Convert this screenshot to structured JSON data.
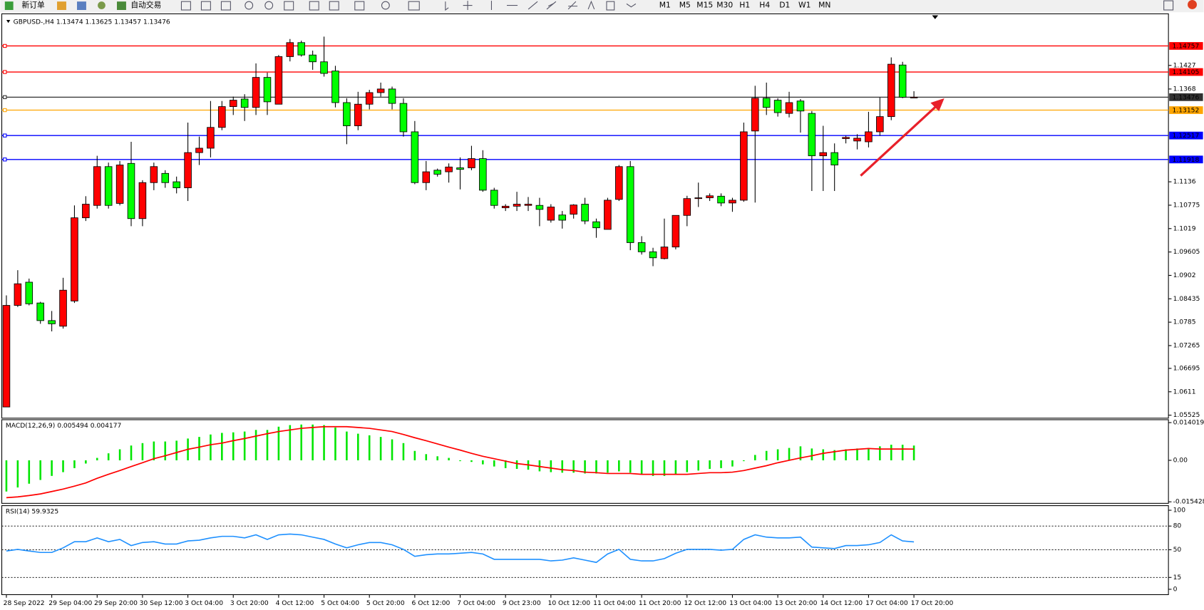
{
  "toolbar": {
    "new_order": "新订单",
    "auto_trading": "自动交易",
    "timeframes": [
      "M1",
      "M5",
      "M15",
      "M30",
      "H1",
      "H4",
      "D1",
      "W1",
      "MN"
    ]
  },
  "chart_data": [
    {
      "type": "candlestick",
      "title": "GBPUSD-,H4  1.13474 1.13625 1.13457 1.13476",
      "up_color": "#ff0000",
      "down_color": "#00ff00",
      "categories": [
        "28 Sep 2022",
        null,
        null,
        null,
        "29 Sep 04:00",
        null,
        null,
        null,
        "29 Sep 20:00",
        null,
        null,
        null,
        "30 Sep 12:00",
        null,
        null,
        null,
        "3 Oct 04:00",
        null,
        null,
        null,
        "3 Oct 20:00",
        null,
        null,
        null,
        "4 Oct 12:00",
        null,
        null,
        null,
        "5 Oct 04:00",
        null,
        null,
        null,
        "5 Oct 20:00",
        null,
        null,
        null,
        "6 Oct 12:00",
        null,
        null,
        null,
        "7 Oct 04:00",
        null,
        null,
        null,
        "9 Oct 23:00",
        null,
        null,
        null,
        "10 Oct 12:00",
        null,
        null,
        null,
        "11 Oct 04:00",
        null,
        null,
        null,
        "11 Oct 20:00",
        null,
        null,
        null,
        "12 Oct 12:00",
        null,
        null,
        null,
        "13 Oct 04:00",
        null,
        null,
        null,
        "13 Oct 20:00",
        null,
        null,
        null,
        "14 Oct 12:00",
        null,
        null,
        null,
        "17 Oct 04:00",
        null,
        null,
        null,
        "17 Oct 20:00"
      ],
      "ohlc": [
        [
          1.0573,
          1.0852,
          1.0573,
          1.0827
        ],
        [
          1.0827,
          1.0915,
          1.0823,
          1.0881
        ],
        [
          1.0885,
          1.0894,
          1.0827,
          1.0831
        ],
        [
          1.0833,
          1.0836,
          1.0781,
          1.0789
        ],
        [
          1.0789,
          1.0813,
          1.0762,
          1.0781
        ],
        [
          1.0775,
          1.0896,
          1.0769,
          1.0865
        ],
        [
          1.0838,
          1.1077,
          1.0833,
          1.1046
        ],
        [
          1.1046,
          1.11,
          1.1038,
          1.108
        ],
        [
          1.1077,
          1.1201,
          1.1069,
          1.1174
        ],
        [
          1.1174,
          1.1184,
          1.1069,
          1.1077
        ],
        [
          1.1082,
          1.1188,
          1.1077,
          1.1178
        ],
        [
          1.1182,
          1.1236,
          1.1025,
          1.1044
        ],
        [
          1.1044,
          1.114,
          1.1025,
          1.1134
        ],
        [
          1.1134,
          1.1184,
          1.1115,
          1.1174
        ],
        [
          1.1157,
          1.1165,
          1.1121,
          1.1134
        ],
        [
          1.1136,
          1.1149,
          1.1107,
          1.1121
        ],
        [
          1.1121,
          1.1284,
          1.1088,
          1.1209
        ],
        [
          1.1209,
          1.1249,
          1.1178,
          1.122
        ],
        [
          1.122,
          1.1338,
          1.1197,
          1.1272
        ],
        [
          1.1272,
          1.1338,
          1.1265,
          1.1324
        ],
        [
          1.1324,
          1.1349,
          1.1303,
          1.134
        ],
        [
          1.1343,
          1.1355,
          1.1288,
          1.1322
        ],
        [
          1.1322,
          1.1432,
          1.1303,
          1.1397
        ],
        [
          1.1397,
          1.1409,
          1.1303,
          1.1336
        ],
        [
          1.133,
          1.1453,
          1.133,
          1.1449
        ],
        [
          1.1449,
          1.1493,
          1.1437,
          1.1484
        ],
        [
          1.1484,
          1.1489,
          1.1449,
          1.1453
        ],
        [
          1.1453,
          1.1464,
          1.1416,
          1.1436
        ],
        [
          1.1436,
          1.1499,
          1.1399,
          1.1407
        ],
        [
          1.1413,
          1.1426,
          1.1322,
          1.1334
        ],
        [
          1.1334,
          1.1345,
          1.123,
          1.1276
        ],
        [
          1.1276,
          1.1361,
          1.1265,
          1.133
        ],
        [
          1.133,
          1.1366,
          1.1317,
          1.1359
        ],
        [
          1.1359,
          1.1384,
          1.1349,
          1.1368
        ],
        [
          1.1368,
          1.1374,
          1.1317,
          1.1332
        ],
        [
          1.1332,
          1.1345,
          1.1249,
          1.1261
        ],
        [
          1.1261,
          1.1288,
          1.113,
          1.1134
        ],
        [
          1.1134,
          1.1188,
          1.1115,
          1.1161
        ],
        [
          1.1165,
          1.1169,
          1.1149,
          1.1155
        ],
        [
          1.1161,
          1.1182,
          1.1134,
          1.1173
        ],
        [
          1.1171,
          1.1197,
          1.1117,
          1.1167
        ],
        [
          1.1171,
          1.1226,
          1.1165,
          1.1194
        ],
        [
          1.1194,
          1.1215,
          1.1111,
          1.1115
        ],
        [
          1.1115,
          1.1121,
          1.1069,
          1.1077
        ],
        [
          1.1071,
          1.108,
          1.1063,
          1.1075
        ],
        [
          1.1075,
          1.1111,
          1.1063,
          1.108
        ],
        [
          1.1077,
          1.1098,
          1.1063,
          1.108
        ],
        [
          1.1077,
          1.1096,
          1.1025,
          1.1067
        ],
        [
          1.104,
          1.108,
          1.1034,
          1.1073
        ],
        [
          1.1053,
          1.1063,
          1.1019,
          1.104
        ],
        [
          1.1055,
          1.108,
          1.1044,
          1.1078
        ],
        [
          1.108,
          1.1096,
          1.103,
          1.1038
        ],
        [
          1.1036,
          1.1044,
          1.0996,
          1.1021
        ],
        [
          1.1017,
          1.1096,
          1.1017,
          1.109
        ],
        [
          1.1092,
          1.1178,
          1.1088,
          1.1174
        ],
        [
          1.1174,
          1.1188,
          1.0965,
          1.0984
        ],
        [
          1.0984,
          1.1,
          1.0954,
          1.0961
        ],
        [
          1.0961,
          1.0971,
          1.0925,
          1.0946
        ],
        [
          1.0944,
          1.1044,
          1.0942,
          1.0973
        ],
        [
          1.0973,
          1.1052,
          1.0967,
          1.1052
        ],
        [
          1.1052,
          1.1101,
          1.1025,
          1.1094
        ],
        [
          1.1094,
          1.1134,
          1.1073,
          1.1096
        ],
        [
          1.1096,
          1.1107,
          1.1088,
          1.1101
        ],
        [
          1.11,
          1.1107,
          1.1075,
          1.1083
        ],
        [
          1.1083,
          1.1096,
          1.1061,
          1.109
        ],
        [
          1.109,
          1.1284,
          1.1086,
          1.1261
        ],
        [
          1.1263,
          1.1376,
          1.1084,
          1.1345
        ],
        [
          1.1345,
          1.1384,
          1.1303,
          1.1322
        ],
        [
          1.134,
          1.1345,
          1.1299,
          1.1309
        ],
        [
          1.1307,
          1.1361,
          1.1297,
          1.1334
        ],
        [
          1.1338,
          1.1343,
          1.1259,
          1.1313
        ],
        [
          1.1307,
          1.1313,
          1.1113,
          1.1201
        ],
        [
          1.1201,
          1.1276,
          1.1113,
          1.1209
        ],
        [
          1.1209,
          1.1232,
          1.1113,
          1.1178
        ],
        [
          1.1244,
          1.1251,
          1.1232,
          1.1247
        ],
        [
          1.1238,
          1.1255,
          1.1217,
          1.1245
        ],
        [
          1.1236,
          1.1311,
          1.1222,
          1.1261
        ],
        [
          1.1261,
          1.1347,
          1.1251,
          1.1299
        ],
        [
          1.1299,
          1.1447,
          1.129,
          1.143
        ],
        [
          1.1428,
          1.1436,
          1.1345,
          1.13474
        ],
        [
          1.13474,
          1.13625,
          1.13457,
          1.13476
        ]
      ],
      "ylim": [
        1.0545,
        1.1556
      ],
      "yticks": [
        1.1427,
        1.1368,
        1.1136,
        1.10775,
        1.1019,
        1.09605,
        1.0902,
        1.08435,
        1.0785,
        1.07265,
        1.06695,
        1.0611,
        1.05525
      ],
      "levels": [
        {
          "value": 1.14757,
          "color": "#ff0000"
        },
        {
          "value": 1.14105,
          "color": "#ff0000"
        },
        {
          "value": 1.13476,
          "color": "#303030"
        },
        {
          "value": 1.13152,
          "color": "#ffa500"
        },
        {
          "value": 1.12517,
          "color": "#0000ff"
        },
        {
          "value": 1.11918,
          "color": "#0000ff"
        }
      ]
    },
    {
      "type": "macd",
      "title": "MACD(12,26,9) 0.005494 0.004177",
      "histogram": {
        "color": "#00e600",
        "values": [
          -0.0116,
          -0.0101,
          -0.0087,
          -0.0073,
          -0.0058,
          -0.0044,
          -0.0029,
          -0.0012,
          0.0009,
          0.0026,
          0.0041,
          0.0055,
          0.0064,
          0.007,
          0.007,
          0.0073,
          0.0081,
          0.0087,
          0.0096,
          0.0102,
          0.0104,
          0.0107,
          0.0113,
          0.0113,
          0.0125,
          0.0131,
          0.0133,
          0.0133,
          0.0131,
          0.0122,
          0.0107,
          0.0099,
          0.0093,
          0.0087,
          0.0078,
          0.0064,
          0.0035,
          0.0023,
          0.0015,
          0.0009,
          -0.0003,
          -0.0006,
          -0.0015,
          -0.0023,
          -0.0029,
          -0.0032,
          -0.0035,
          -0.0041,
          -0.0044,
          -0.0046,
          -0.0046,
          -0.0049,
          -0.0049,
          -0.0046,
          -0.0041,
          -0.0046,
          -0.0052,
          -0.0058,
          -0.0058,
          -0.0052,
          -0.0044,
          -0.0038,
          -0.0032,
          -0.0029,
          -0.0023,
          -0.0003,
          0.002,
          0.0035,
          0.0041,
          0.0046,
          0.0052,
          0.0044,
          0.0041,
          0.0038,
          0.0041,
          0.0044,
          0.0046,
          0.0052,
          0.0058,
          0.0058,
          0.005494
        ]
      },
      "signal": {
        "color": "#ff0000",
        "values": [
          -0.0139,
          -0.0136,
          -0.0131,
          -0.0125,
          -0.0116,
          -0.0107,
          -0.0096,
          -0.0084,
          -0.0067,
          -0.0052,
          -0.0038,
          -0.0023,
          -0.0009,
          0.0006,
          0.0017,
          0.0029,
          0.0041,
          0.0049,
          0.0058,
          0.0064,
          0.0073,
          0.0081,
          0.009,
          0.0099,
          0.0107,
          0.0113,
          0.0119,
          0.0122,
          0.0125,
          0.0125,
          0.0125,
          0.0122,
          0.0119,
          0.0113,
          0.0107,
          0.0096,
          0.0084,
          0.0073,
          0.0061,
          0.0049,
          0.0038,
          0.0026,
          0.0015,
          0.0006,
          -0.0003,
          -0.0012,
          -0.0017,
          -0.0023,
          -0.0029,
          -0.0035,
          -0.0038,
          -0.0044,
          -0.0046,
          -0.0049,
          -0.0049,
          -0.0049,
          -0.0052,
          -0.0052,
          -0.0052,
          -0.0052,
          -0.0052,
          -0.0049,
          -0.0046,
          -0.0046,
          -0.0044,
          -0.0038,
          -0.0029,
          -0.002,
          -0.0009,
          0.0,
          0.0009,
          0.0017,
          0.0026,
          0.0032,
          0.0038,
          0.0041,
          0.0044,
          0.0042,
          0.0042,
          0.0042,
          0.004177
        ]
      },
      "ylim": [
        -0.016,
        0.0151
      ],
      "yticks": [
        0.014019,
        {
          "value": 0,
          "label": "0.00"
        },
        -0.015428
      ]
    },
    {
      "type": "line",
      "title": "RSI(14) 59.9325",
      "color": "#1e90ff",
      "values": [
        48.5,
        50.5,
        48.5,
        46.6,
        46.6,
        52.4,
        60.2,
        60.2,
        65.0,
        60.2,
        63.1,
        55.3,
        59.2,
        60.2,
        57.3,
        57.3,
        61.2,
        62.1,
        65.0,
        67.0,
        67.0,
        65.0,
        68.9,
        63.1,
        68.9,
        69.9,
        68.9,
        66.0,
        63.1,
        57.3,
        52.4,
        56.3,
        59.2,
        59.2,
        56.3,
        50.5,
        41.7,
        43.7,
        44.7,
        44.7,
        45.6,
        46.6,
        44.7,
        37.9,
        37.9,
        37.9,
        37.9,
        37.9,
        35.9,
        36.9,
        39.8,
        36.9,
        34.0,
        44.7,
        50.5,
        37.9,
        35.9,
        35.9,
        38.8,
        45.6,
        50.5,
        50.5,
        50.5,
        49.5,
        50.5,
        63.1,
        68.9,
        66.0,
        65.0,
        65.0,
        66.0,
        53.4,
        52.4,
        51.5,
        55.3,
        55.3,
        56.3,
        59.2,
        68.9,
        61.2,
        59.9325
      ],
      "ylim": [
        0,
        100
      ],
      "yticks": [
        100,
        80,
        50,
        15,
        0
      ],
      "levels": [
        80,
        50,
        15
      ]
    }
  ]
}
